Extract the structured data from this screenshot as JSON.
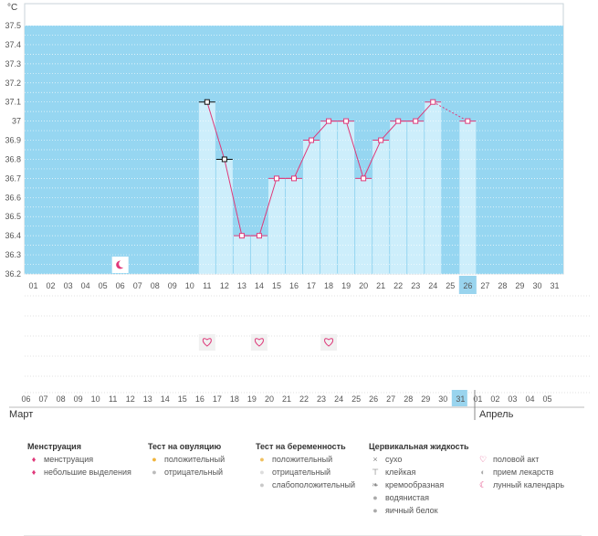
{
  "chart_data": {
    "type": "line",
    "unit": "°C",
    "y_ticks": [
      "37.5",
      "37.4",
      "37.3",
      "37.2",
      "37.1",
      "37",
      "36.9",
      "36.8",
      "36.7",
      "36.6",
      "36.5",
      "36.4",
      "36.3",
      "36.2"
    ],
    "ylim": [
      36.2,
      37.5
    ],
    "x": [
      11,
      12,
      13,
      14,
      15,
      16,
      17,
      18,
      19,
      20,
      21,
      22,
      23,
      24,
      26
    ],
    "values": [
      37.1,
      36.8,
      36.4,
      36.4,
      36.7,
      36.7,
      36.9,
      37.0,
      37.0,
      36.7,
      36.9,
      37.0,
      37.0,
      37.1,
      37.0
    ],
    "gap_from_day": 24,
    "gap_to_day": 26,
    "highlight_day": 26,
    "cycle_days": [
      "01",
      "02",
      "03",
      "04",
      "05",
      "06",
      "07",
      "08",
      "09",
      "10",
      "11",
      "12",
      "13",
      "14",
      "15",
      "16",
      "17",
      "18",
      "19",
      "20",
      "21",
      "22",
      "23",
      "24",
      "25",
      "26",
      "27",
      "28",
      "29",
      "30",
      "31"
    ],
    "calendar_dates": [
      "06",
      "07",
      "08",
      "09",
      "10",
      "11",
      "12",
      "13",
      "14",
      "15",
      "16",
      "17",
      "18",
      "19",
      "20",
      "21",
      "22",
      "23",
      "24",
      "25",
      "26",
      "27",
      "28",
      "29",
      "30",
      "31",
      "01",
      "02",
      "03",
      "04",
      "05"
    ],
    "weekend_indexes": [
      2,
      3,
      9,
      10,
      16,
      17,
      23,
      24,
      30
    ],
    "highlight_date_index": 25,
    "moon_day": 6,
    "intercourse_days": [
      11,
      14,
      18
    ],
    "month_labels": [
      "Март",
      "Апрель"
    ],
    "grid": true,
    "colors": {
      "band": "#96d6f1",
      "bar": "#cdeefb",
      "line": "#de3a7a",
      "weekend": "#d0175a",
      "highlight": "#99d4ee"
    }
  },
  "legend": {
    "columns": [
      {
        "title": "Менструация",
        "items": [
          {
            "icon": "menstruation-icon",
            "label": "менструация"
          },
          {
            "icon": "spotting-icon",
            "label": "небольшие выделения"
          }
        ]
      },
      {
        "title": "Тест на овуляцию",
        "items": [
          {
            "icon": "ovulation-positive-icon",
            "label": "положительный"
          },
          {
            "icon": "ovulation-negative-icon",
            "label": "отрицательный"
          }
        ]
      },
      {
        "title": "Тест на беременность",
        "items": [
          {
            "icon": "pregnancy-positive-icon",
            "label": "положительный"
          },
          {
            "icon": "pregnancy-negative-icon",
            "label": "отрицательный"
          },
          {
            "icon": "pregnancy-weak-icon",
            "label": "слабоположительный"
          }
        ]
      },
      {
        "title": "Цервикальная жидкость",
        "items": [
          {
            "icon": "dry-icon",
            "label": "сухо"
          },
          {
            "icon": "sticky-icon",
            "label": "клейкая"
          },
          {
            "icon": "creamy-icon",
            "label": "кремообразная"
          },
          {
            "icon": "watery-icon",
            "label": "водянистая"
          },
          {
            "icon": "egg-white-icon",
            "label": "яичный белок"
          }
        ]
      },
      {
        "title": "",
        "items": [
          {
            "icon": "heart-icon",
            "label": "половой акт"
          },
          {
            "icon": "pill-icon",
            "label": "прием лекарств"
          },
          {
            "icon": "moon-icon",
            "label": "лунный календарь"
          }
        ]
      }
    ]
  }
}
